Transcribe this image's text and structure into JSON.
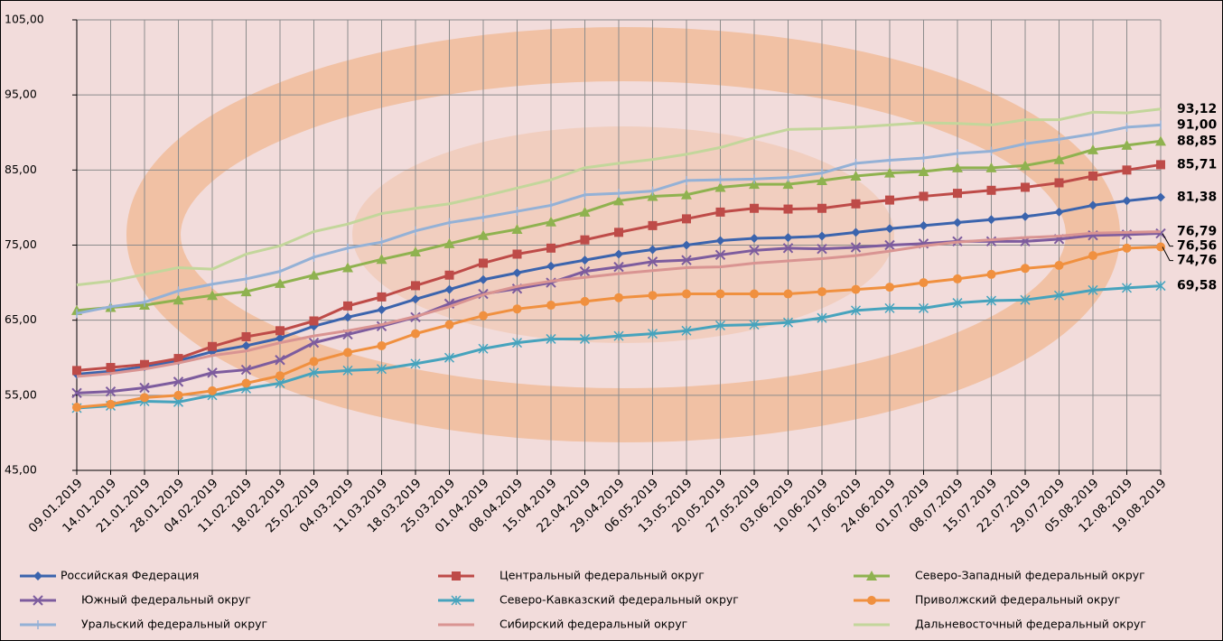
{
  "chart_data": {
    "type": "line",
    "categories": [
      "09.01.2019",
      "14.01.2019",
      "21.01.2019",
      "28.01.2019",
      "04.02.2019",
      "11.02.2019",
      "18.02.2019",
      "25.02.2019",
      "04.03.2019",
      "11.03.2019",
      "18.03.2019",
      "25.03.2019",
      "01.04.2019",
      "08.04.2019",
      "15.04.2019",
      "22.04.2019",
      "29.04.2019",
      "06.05.2019",
      "13.05.2019",
      "20.05.2019",
      "27.05.2019",
      "03.06.2019",
      "10.06.2019",
      "17.06.2019",
      "24.06.2019",
      "01.07.2019",
      "08.07.2019",
      "15.07.2019",
      "22.07.2019",
      "29.07.2019",
      "05.08.2019",
      "12.08.2019",
      "19.08.2019"
    ],
    "ylim": [
      45,
      105
    ],
    "yticks": [
      {
        "value": 45,
        "label": "45,00"
      },
      {
        "value": 55,
        "label": "55,00"
      },
      {
        "value": 65,
        "label": "65,00"
      },
      {
        "value": 75,
        "label": "75,00"
      },
      {
        "value": 85,
        "label": "85,00"
      },
      {
        "value": 95,
        "label": "95,00"
      },
      {
        "value": 105,
        "label": "105,00"
      }
    ],
    "grid": true,
    "series": [
      {
        "name": "Российская Федерация",
        "color": "#3b64ad",
        "marker": "diamond",
        "values": [
          57.8,
          58.2,
          58.8,
          59.6,
          60.8,
          61.6,
          62.6,
          64.2,
          65.4,
          66.4,
          67.8,
          69.1,
          70.4,
          71.3,
          72.2,
          73.0,
          73.8,
          74.4,
          75.0,
          75.6,
          75.9,
          76.0,
          76.2,
          76.7,
          77.2,
          77.6,
          78.0,
          78.4,
          78.8,
          79.4,
          80.3,
          80.9,
          81.38
        ],
        "value_labels": [
          null,
          null,
          null,
          null,
          null,
          null,
          null,
          null,
          null,
          null,
          null,
          null,
          null,
          null,
          null,
          null,
          null,
          null,
          null,
          null,
          null,
          null,
          null,
          null,
          null,
          null,
          null,
          null,
          null,
          null,
          null,
          null,
          "81,38"
        ]
      },
      {
        "name": "Центральный федеральный округ",
        "color": "#be4b48",
        "marker": "square",
        "values": [
          58.3,
          58.7,
          59.1,
          59.9,
          61.5,
          62.8,
          63.6,
          64.9,
          66.9,
          68.1,
          69.6,
          71.0,
          72.6,
          73.8,
          74.6,
          75.7,
          76.7,
          77.6,
          78.5,
          79.4,
          79.9,
          79.8,
          79.9,
          80.5,
          81.0,
          81.5,
          81.9,
          82.3,
          82.7,
          83.3,
          84.2,
          85.0,
          85.71
        ],
        "value_labels": [
          null,
          null,
          null,
          null,
          null,
          null,
          null,
          null,
          null,
          null,
          null,
          null,
          null,
          null,
          null,
          null,
          null,
          null,
          null,
          null,
          null,
          null,
          null,
          null,
          null,
          null,
          null,
          null,
          null,
          null,
          null,
          null,
          "85,71"
        ]
      },
      {
        "name": "Северо-Западный федеральный округ",
        "color": "#8fb24f",
        "marker": "triangle",
        "values": [
          66.3,
          66.7,
          67.0,
          67.7,
          68.3,
          68.8,
          69.9,
          71.0,
          72.0,
          73.1,
          74.1,
          75.2,
          76.3,
          77.1,
          78.1,
          79.4,
          80.9,
          81.5,
          81.7,
          82.7,
          83.1,
          83.1,
          83.6,
          84.2,
          84.6,
          84.8,
          85.3,
          85.3,
          85.6,
          86.4,
          87.7,
          88.3,
          88.85
        ],
        "value_labels": [
          null,
          null,
          null,
          null,
          null,
          null,
          null,
          null,
          null,
          null,
          null,
          null,
          null,
          null,
          null,
          null,
          null,
          null,
          null,
          null,
          null,
          null,
          null,
          null,
          null,
          null,
          null,
          null,
          null,
          null,
          null,
          null,
          "88,85"
        ]
      },
      {
        "name": "Южный федеральный округ",
        "color": "#7d5c9e",
        "marker": "x",
        "values": [
          55.3,
          55.5,
          56.0,
          56.8,
          58.0,
          58.4,
          59.7,
          62.0,
          63.1,
          64.2,
          65.4,
          67.2,
          68.5,
          69.2,
          70.0,
          71.5,
          72.1,
          72.8,
          73.0,
          73.7,
          74.3,
          74.6,
          74.5,
          74.7,
          75.0,
          75.2,
          75.5,
          75.5,
          75.5,
          75.8,
          76.3,
          76.4,
          76.56
        ],
        "value_labels": [
          null,
          null,
          null,
          null,
          null,
          null,
          null,
          null,
          null,
          null,
          null,
          null,
          null,
          null,
          null,
          null,
          null,
          null,
          null,
          null,
          null,
          null,
          null,
          null,
          null,
          null,
          null,
          null,
          null,
          null,
          null,
          null,
          "76,56"
        ]
      },
      {
        "name": "Северо-Кавказский федеральный округ",
        "color": "#46a3bd",
        "marker": "asterisk",
        "values": [
          53.3,
          53.6,
          54.2,
          54.1,
          55.0,
          55.9,
          56.6,
          58.0,
          58.3,
          58.5,
          59.2,
          60.0,
          61.2,
          62.0,
          62.5,
          62.5,
          62.9,
          63.2,
          63.6,
          64.3,
          64.4,
          64.7,
          65.3,
          66.3,
          66.6,
          66.6,
          67.3,
          67.6,
          67.7,
          68.3,
          69.0,
          69.3,
          69.58
        ],
        "value_labels": [
          null,
          null,
          null,
          null,
          null,
          null,
          null,
          null,
          null,
          null,
          null,
          null,
          null,
          null,
          null,
          null,
          null,
          null,
          null,
          null,
          null,
          null,
          null,
          null,
          null,
          null,
          null,
          null,
          null,
          null,
          null,
          null,
          "69,58"
        ]
      },
      {
        "name": "Приволжский федеральный округ",
        "color": "#f0903f",
        "marker": "circle",
        "values": [
          53.4,
          53.8,
          54.7,
          55.0,
          55.6,
          56.6,
          57.6,
          59.5,
          60.7,
          61.6,
          63.2,
          64.4,
          65.6,
          66.5,
          67.0,
          67.5,
          68.0,
          68.3,
          68.5,
          68.5,
          68.5,
          68.5,
          68.8,
          69.1,
          69.4,
          70.0,
          70.5,
          71.1,
          71.9,
          72.3,
          73.6,
          74.6,
          74.76
        ],
        "value_labels": [
          null,
          null,
          null,
          null,
          null,
          null,
          null,
          null,
          null,
          null,
          null,
          null,
          null,
          null,
          null,
          null,
          null,
          null,
          null,
          null,
          null,
          null,
          null,
          null,
          null,
          null,
          null,
          null,
          null,
          null,
          null,
          null,
          "74,76"
        ]
      },
      {
        "name": "Уральский федеральный округ",
        "color": "#94b1d6",
        "marker": "plus",
        "values": [
          65.9,
          66.8,
          67.4,
          68.9,
          69.8,
          70.5,
          71.5,
          73.4,
          74.6,
          75.4,
          76.9,
          78.0,
          78.7,
          79.5,
          80.3,
          81.7,
          81.9,
          82.2,
          83.6,
          83.7,
          83.8,
          84.0,
          84.6,
          85.9,
          86.3,
          86.6,
          87.2,
          87.5,
          88.5,
          89.1,
          89.8,
          90.7,
          91.0
        ],
        "value_labels": [
          null,
          null,
          null,
          null,
          null,
          null,
          null,
          null,
          null,
          null,
          null,
          null,
          null,
          null,
          null,
          null,
          null,
          null,
          null,
          null,
          null,
          null,
          null,
          null,
          null,
          null,
          null,
          null,
          null,
          null,
          null,
          null,
          "91,00"
        ]
      },
      {
        "name": "Сибирский федеральный округ",
        "color": "#d99492",
        "marker": "none",
        "values": [
          57.5,
          57.9,
          58.5,
          59.3,
          60.3,
          60.9,
          62.0,
          62.9,
          63.6,
          64.4,
          65.5,
          66.8,
          68.4,
          69.5,
          70.2,
          70.7,
          71.2,
          71.6,
          72.0,
          72.1,
          72.6,
          72.9,
          73.2,
          73.6,
          74.2,
          74.9,
          75.4,
          75.7,
          76.0,
          76.2,
          76.6,
          76.7,
          76.79
        ],
        "value_labels": [
          null,
          null,
          null,
          null,
          null,
          null,
          null,
          null,
          null,
          null,
          null,
          null,
          null,
          null,
          null,
          null,
          null,
          null,
          null,
          null,
          null,
          null,
          null,
          null,
          null,
          null,
          null,
          null,
          null,
          null,
          null,
          null,
          "76,79"
        ]
      },
      {
        "name": "Дальневосточный федеральный округ",
        "color": "#c3d69b",
        "marker": "none",
        "values": [
          69.7,
          70.2,
          71.1,
          72.0,
          71.8,
          73.8,
          74.9,
          76.8,
          77.8,
          79.2,
          79.9,
          80.5,
          81.5,
          82.6,
          83.7,
          85.3,
          85.9,
          86.4,
          87.1,
          88.0,
          89.3,
          90.4,
          90.5,
          90.7,
          91.0,
          91.3,
          91.2,
          91.0,
          91.7,
          91.7,
          92.7,
          92.6,
          93.12
        ],
        "value_labels": [
          null,
          null,
          null,
          null,
          null,
          null,
          null,
          null,
          null,
          null,
          null,
          null,
          null,
          null,
          null,
          null,
          null,
          null,
          null,
          null,
          null,
          null,
          null,
          null,
          null,
          null,
          null,
          null,
          null,
          null,
          null,
          null,
          "93,12"
        ]
      }
    ]
  }
}
